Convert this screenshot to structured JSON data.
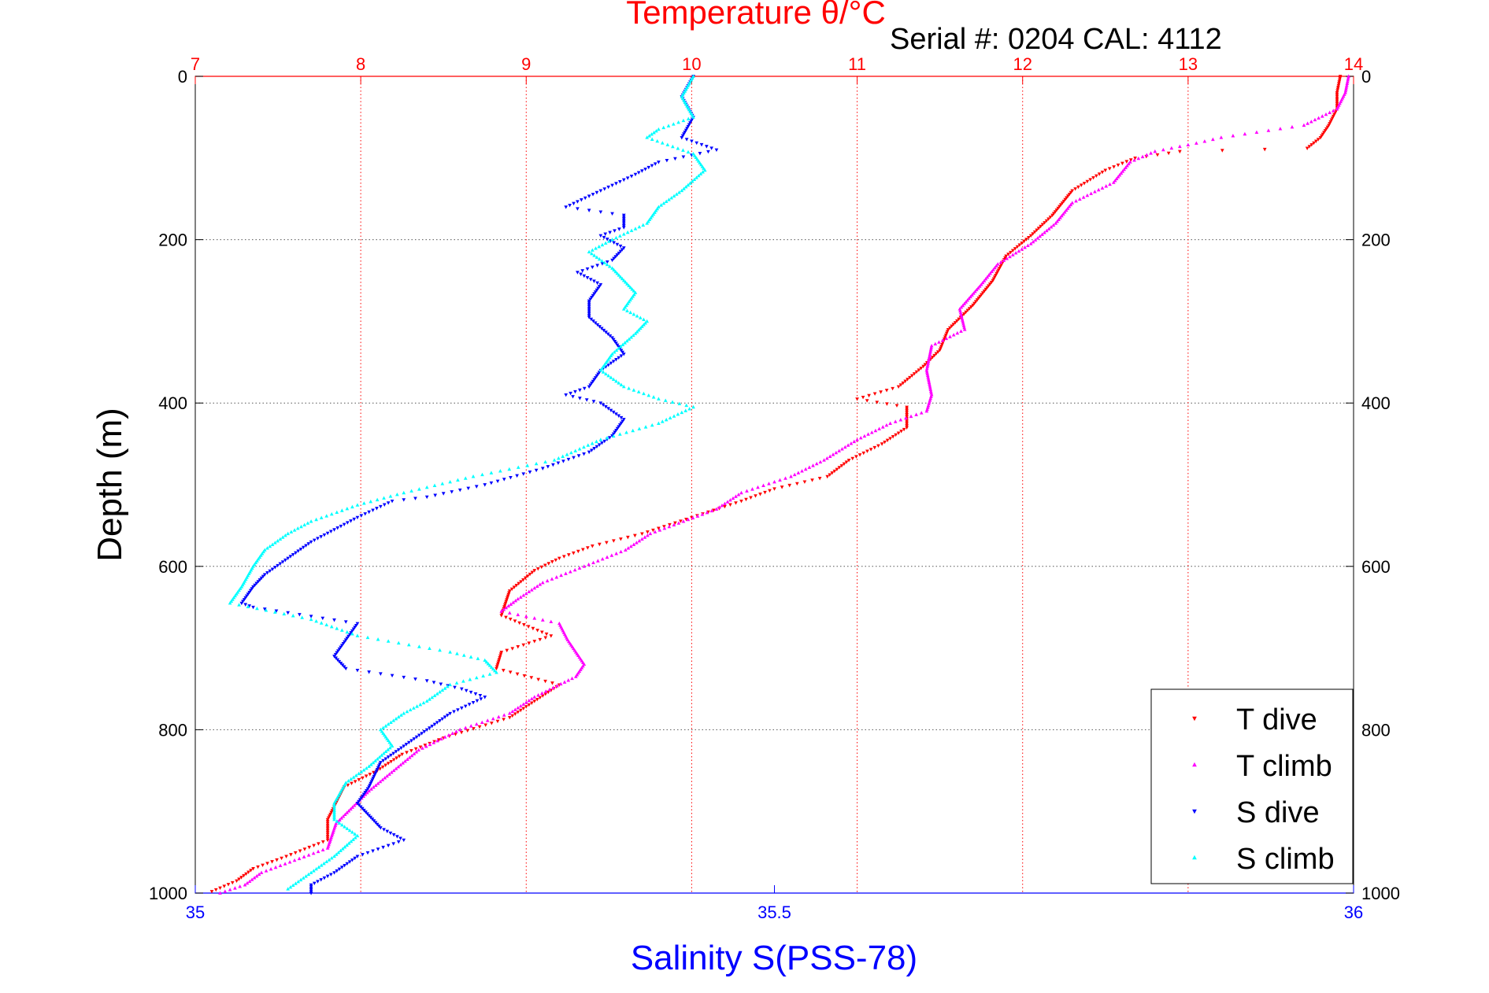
{
  "chart_data": {
    "type": "scatter",
    "title": "Temperature θ/°C",
    "subtitle": "Serial #: 0204  CAL: 4112",
    "ylabel": "Depth (m)",
    "xlabel_bottom": "Salinity S(PSS-78)",
    "xlabel_top": "Temperature θ/°C",
    "ylim": [
      1000,
      0
    ],
    "y_ticks": [
      "0",
      "200",
      "400",
      "600",
      "800",
      "1000"
    ],
    "x_top_range": [
      7,
      14
    ],
    "x_top_ticks": [
      "7",
      "8",
      "9",
      "10",
      "11",
      "12",
      "13",
      "14"
    ],
    "x_bottom_range": [
      35,
      36
    ],
    "x_bottom_ticks": [
      "35",
      "35.5",
      "36"
    ],
    "grid": true,
    "legend_position": "bottom-right",
    "colors": {
      "temperature_axis": "#ff0000",
      "salinity_axis": "#0000ff",
      "t_dive": "#ff0000",
      "t_climb": "#ff00ff",
      "s_dive": "#0000ff",
      "s_climb": "#00ffff"
    },
    "series": [
      {
        "name": "T dive",
        "axis": "top",
        "marker": "triangle-down",
        "color": "#ff0000",
        "points": [
          [
            13.92,
            0
          ],
          [
            13.9,
            20
          ],
          [
            13.9,
            40
          ],
          [
            13.85,
            60
          ],
          [
            13.8,
            75
          ],
          [
            13.72,
            88
          ],
          [
            12.95,
            92
          ],
          [
            12.68,
            100
          ],
          [
            12.5,
            115
          ],
          [
            12.3,
            140
          ],
          [
            12.18,
            170
          ],
          [
            12.05,
            195
          ],
          [
            11.9,
            220
          ],
          [
            11.82,
            250
          ],
          [
            11.7,
            280
          ],
          [
            11.55,
            310
          ],
          [
            11.5,
            335
          ],
          [
            11.4,
            355
          ],
          [
            11.25,
            380
          ],
          [
            11.0,
            395
          ],
          [
            11.3,
            405
          ],
          [
            11.3,
            430
          ],
          [
            11.15,
            450
          ],
          [
            10.95,
            470
          ],
          [
            10.82,
            490
          ],
          [
            10.5,
            505
          ],
          [
            10.3,
            520
          ],
          [
            10.0,
            540
          ],
          [
            9.7,
            560
          ],
          [
            9.4,
            575
          ],
          [
            9.2,
            590
          ],
          [
            9.05,
            605
          ],
          [
            8.9,
            630
          ],
          [
            8.85,
            660
          ],
          [
            9.15,
            685
          ],
          [
            8.85,
            705
          ],
          [
            8.82,
            725
          ],
          [
            9.2,
            745
          ],
          [
            9.05,
            765
          ],
          [
            8.9,
            785
          ],
          [
            8.5,
            810
          ],
          [
            8.25,
            830
          ],
          [
            8.1,
            850
          ],
          [
            7.9,
            870
          ],
          [
            7.85,
            890
          ],
          [
            7.8,
            910
          ],
          [
            7.8,
            935
          ],
          [
            7.55,
            955
          ],
          [
            7.35,
            970
          ],
          [
            7.25,
            985
          ],
          [
            7.1,
            998
          ]
        ]
      },
      {
        "name": "T climb",
        "axis": "top",
        "marker": "triangle-up",
        "color": "#ff00ff",
        "points": [
          [
            13.97,
            0
          ],
          [
            13.95,
            20
          ],
          [
            13.9,
            40
          ],
          [
            13.7,
            60
          ],
          [
            13.2,
            75
          ],
          [
            13.05,
            82
          ],
          [
            12.8,
            92
          ],
          [
            12.65,
            105
          ],
          [
            12.55,
            130
          ],
          [
            12.3,
            155
          ],
          [
            12.2,
            180
          ],
          [
            12.05,
            205
          ],
          [
            11.85,
            230
          ],
          [
            11.75,
            255
          ],
          [
            11.62,
            285
          ],
          [
            11.65,
            310
          ],
          [
            11.45,
            330
          ],
          [
            11.42,
            360
          ],
          [
            11.45,
            390
          ],
          [
            11.42,
            410
          ],
          [
            11.2,
            425
          ],
          [
            11.0,
            445
          ],
          [
            10.8,
            470
          ],
          [
            10.6,
            490
          ],
          [
            10.3,
            510
          ],
          [
            10.15,
            530
          ],
          [
            9.95,
            545
          ],
          [
            9.75,
            560
          ],
          [
            9.6,
            580
          ],
          [
            9.35,
            600
          ],
          [
            9.1,
            620
          ],
          [
            8.95,
            640
          ],
          [
            8.85,
            655
          ],
          [
            9.2,
            670
          ],
          [
            9.25,
            690
          ],
          [
            9.35,
            720
          ],
          [
            9.3,
            735
          ],
          [
            9.05,
            760
          ],
          [
            8.9,
            780
          ],
          [
            8.6,
            800
          ],
          [
            8.35,
            825
          ],
          [
            8.2,
            850
          ],
          [
            8.05,
            875
          ],
          [
            7.95,
            895
          ],
          [
            7.85,
            915
          ],
          [
            7.8,
            945
          ],
          [
            7.6,
            960
          ],
          [
            7.4,
            975
          ],
          [
            7.3,
            990
          ],
          [
            7.15,
            1000
          ]
        ]
      },
      {
        "name": "S dive",
        "axis": "bottom",
        "marker": "triangle-down",
        "color": "#0000ff",
        "points": [
          [
            35.43,
            0
          ],
          [
            35.42,
            25
          ],
          [
            35.43,
            50
          ],
          [
            35.42,
            75
          ],
          [
            35.45,
            90
          ],
          [
            35.4,
            105
          ],
          [
            35.38,
            120
          ],
          [
            35.35,
            140
          ],
          [
            35.32,
            160
          ],
          [
            35.37,
            170
          ],
          [
            35.37,
            185
          ],
          [
            35.35,
            195
          ],
          [
            35.37,
            210
          ],
          [
            35.36,
            225
          ],
          [
            35.33,
            240
          ],
          [
            35.35,
            255
          ],
          [
            35.34,
            275
          ],
          [
            35.34,
            295
          ],
          [
            35.36,
            320
          ],
          [
            35.37,
            340
          ],
          [
            35.35,
            360
          ],
          [
            35.34,
            380
          ],
          [
            35.32,
            390
          ],
          [
            35.35,
            400
          ],
          [
            35.37,
            420
          ],
          [
            35.36,
            440
          ],
          [
            35.34,
            460
          ],
          [
            35.3,
            480
          ],
          [
            35.25,
            500
          ],
          [
            35.2,
            515
          ],
          [
            35.17,
            520
          ],
          [
            35.14,
            540
          ],
          [
            35.12,
            555
          ],
          [
            35.1,
            570
          ],
          [
            35.08,
            590
          ],
          [
            35.06,
            610
          ],
          [
            35.05,
            625
          ],
          [
            35.04,
            645
          ],
          [
            35.05,
            650
          ],
          [
            35.14,
            670
          ],
          [
            35.13,
            690
          ],
          [
            35.12,
            710
          ],
          [
            35.13,
            725
          ],
          [
            35.2,
            740
          ],
          [
            35.23,
            750
          ],
          [
            35.25,
            760
          ],
          [
            35.22,
            780
          ],
          [
            35.2,
            800
          ],
          [
            35.18,
            820
          ],
          [
            35.16,
            840
          ],
          [
            35.15,
            870
          ],
          [
            35.14,
            890
          ],
          [
            35.16,
            920
          ],
          [
            35.18,
            935
          ],
          [
            35.14,
            955
          ],
          [
            35.12,
            975
          ],
          [
            35.1,
            990
          ],
          [
            35.1,
            1000
          ]
        ]
      },
      {
        "name": "S climb",
        "axis": "bottom",
        "marker": "triangle-up",
        "color": "#00ffff",
        "points": [
          [
            35.43,
            0
          ],
          [
            35.42,
            25
          ],
          [
            35.43,
            50
          ],
          [
            35.4,
            65
          ],
          [
            35.39,
            75
          ],
          [
            35.43,
            95
          ],
          [
            35.44,
            115
          ],
          [
            35.42,
            140
          ],
          [
            35.4,
            160
          ],
          [
            35.39,
            180
          ],
          [
            35.36,
            200
          ],
          [
            35.34,
            215
          ],
          [
            35.36,
            235
          ],
          [
            35.38,
            265
          ],
          [
            35.37,
            285
          ],
          [
            35.39,
            300
          ],
          [
            35.38,
            315
          ],
          [
            35.36,
            340
          ],
          [
            35.35,
            360
          ],
          [
            35.37,
            380
          ],
          [
            35.4,
            395
          ],
          [
            35.43,
            405
          ],
          [
            35.4,
            425
          ],
          [
            35.35,
            445
          ],
          [
            35.31,
            470
          ],
          [
            35.24,
            490
          ],
          [
            35.18,
            510
          ],
          [
            35.14,
            525
          ],
          [
            35.1,
            545
          ],
          [
            35.08,
            560
          ],
          [
            35.06,
            580
          ],
          [
            35.05,
            600
          ],
          [
            35.04,
            625
          ],
          [
            35.03,
            645
          ],
          [
            35.1,
            665
          ],
          [
            35.14,
            685
          ],
          [
            35.22,
            705
          ],
          [
            35.25,
            715
          ],
          [
            35.26,
            730
          ],
          [
            35.22,
            745
          ],
          [
            35.2,
            765
          ],
          [
            35.18,
            780
          ],
          [
            35.16,
            800
          ],
          [
            35.17,
            820
          ],
          [
            35.15,
            845
          ],
          [
            35.13,
            865
          ],
          [
            35.12,
            890
          ],
          [
            35.12,
            910
          ],
          [
            35.14,
            930
          ],
          [
            35.12,
            955
          ],
          [
            35.1,
            975
          ],
          [
            35.08,
            995
          ]
        ]
      }
    ]
  }
}
